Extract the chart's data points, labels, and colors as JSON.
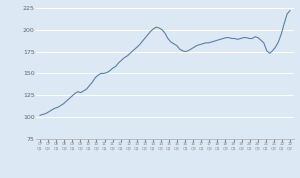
{
  "title": "",
  "background_color": "#dce9f5",
  "plot_bg_color": "#dce9f5",
  "line_color": "#5a7fa8",
  "line_width": 0.8,
  "ylim": [
    75,
    228
  ],
  "yticks": [
    75,
    100,
    125,
    150,
    175,
    200,
    225
  ],
  "grid_color": "#ffffff",
  "grid_linewidth": 0.7,
  "x_labels": [
    "07\nQ1",
    "07\nQ3",
    "08\nQ1",
    "08\nQ3",
    "09\nQ1",
    "09\nQ3",
    "10\nQ1",
    "10\nQ3",
    "11\nQ1",
    "11\nQ3",
    "12\nQ1",
    "12\nQ3",
    "13\nQ1",
    "13\nQ3",
    "14\nQ1",
    "14\nQ3",
    "15\nQ1",
    "15\nQ3",
    "16\nQ1",
    "16\nQ3",
    "17\nQ1",
    "17\nQ3",
    "18\nQ1",
    "18\nQ3",
    "19\nQ1",
    "19\nQ3",
    "20\nQ1",
    "20\nQ3",
    "21\nQ1",
    "21\nQ3",
    "22\nQ1",
    "22\nQ3"
  ],
  "y_values": [
    102,
    103,
    104,
    106,
    108,
    110,
    111,
    113,
    115,
    118,
    121,
    124,
    127,
    129,
    128,
    130,
    132,
    136,
    140,
    145,
    148,
    150,
    150,
    151,
    153,
    156,
    158,
    162,
    165,
    168,
    170,
    173,
    176,
    179,
    182,
    186,
    190,
    194,
    198,
    201,
    203,
    202,
    200,
    196,
    190,
    186,
    184,
    182,
    178,
    176,
    175,
    176,
    178,
    180,
    182,
    183,
    184,
    185,
    185,
    186,
    187,
    188,
    189,
    190,
    191,
    191,
    190,
    190,
    189,
    190,
    191,
    191,
    190,
    190,
    192,
    191,
    188,
    185,
    176,
    173,
    176,
    180,
    186,
    195,
    207,
    218,
    222
  ]
}
